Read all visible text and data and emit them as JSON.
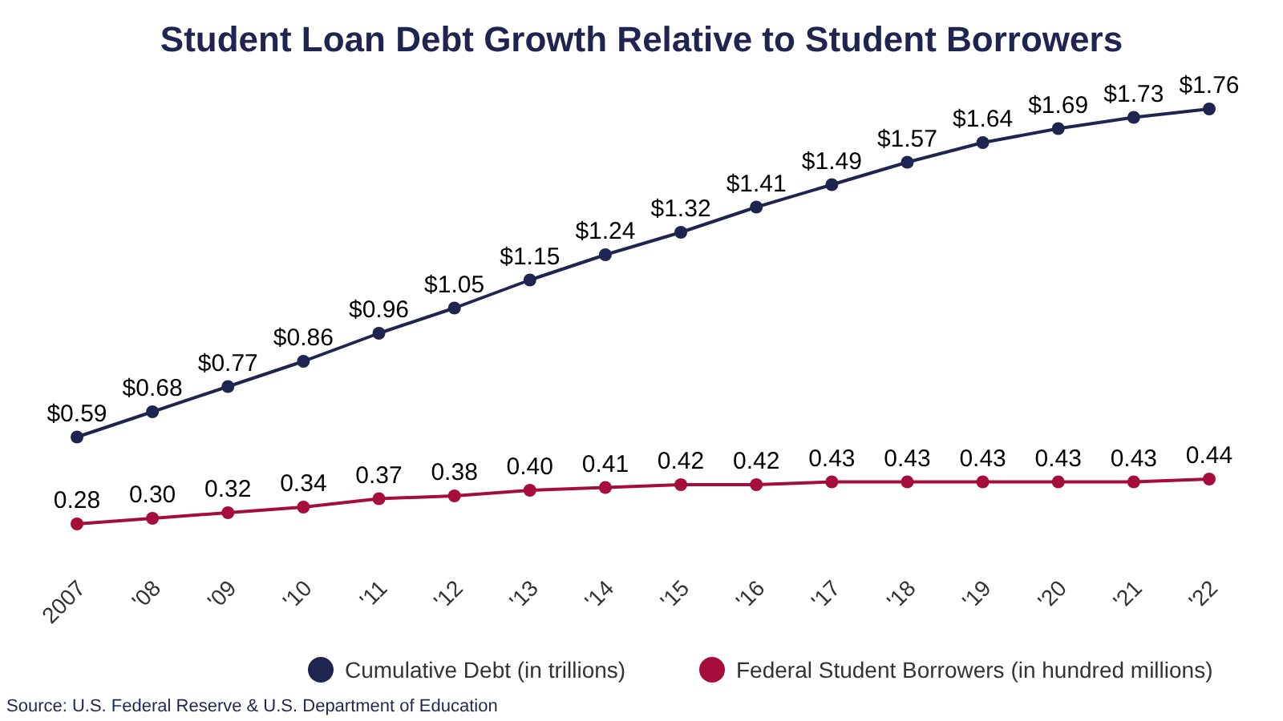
{
  "chart_data": {
    "type": "line",
    "title": "Student Loan Debt Growth Relative to Student Borrowers",
    "categories": [
      "2007",
      "'08",
      "'09",
      "'10",
      "'11",
      "'12",
      "'13",
      "'14",
      "'15",
      "'16",
      "'17",
      "'18",
      "'19",
      "'20",
      "'21",
      "'22"
    ],
    "series": [
      {
        "name": "Cumulative Debt (in trillions)",
        "color": "#1f2550",
        "values": [
          0.59,
          0.68,
          0.77,
          0.86,
          0.96,
          1.05,
          1.15,
          1.24,
          1.32,
          1.41,
          1.49,
          1.57,
          1.64,
          1.69,
          1.73,
          1.76
        ],
        "value_labels": [
          "$0.59",
          "$0.68",
          "$0.77",
          "$0.86",
          "$0.96",
          "$1.05",
          "$1.15",
          "$1.24",
          "$1.32",
          "$1.41",
          "$1.49",
          "$1.57",
          "$1.64",
          "$1.69",
          "$1.73",
          "$1.76"
        ]
      },
      {
        "name": "Federal Student Borrowers (in hundred millions)",
        "color": "#a50d3a",
        "values": [
          0.28,
          0.3,
          0.32,
          0.34,
          0.37,
          0.38,
          0.4,
          0.41,
          0.42,
          0.42,
          0.43,
          0.43,
          0.43,
          0.43,
          0.43,
          0.44
        ],
        "value_labels": [
          "0.28",
          "0.30",
          "0.32",
          "0.34",
          "0.37",
          "0.38",
          "0.40",
          "0.41",
          "0.42",
          "0.42",
          "0.43",
          "0.43",
          "0.43",
          "0.43",
          "0.43",
          "0.44"
        ]
      }
    ],
    "marker": "circle",
    "legend": "bottom",
    "annotations": [
      "Source: U.S. Federal Reserve & U.S. Department of Education"
    ]
  }
}
